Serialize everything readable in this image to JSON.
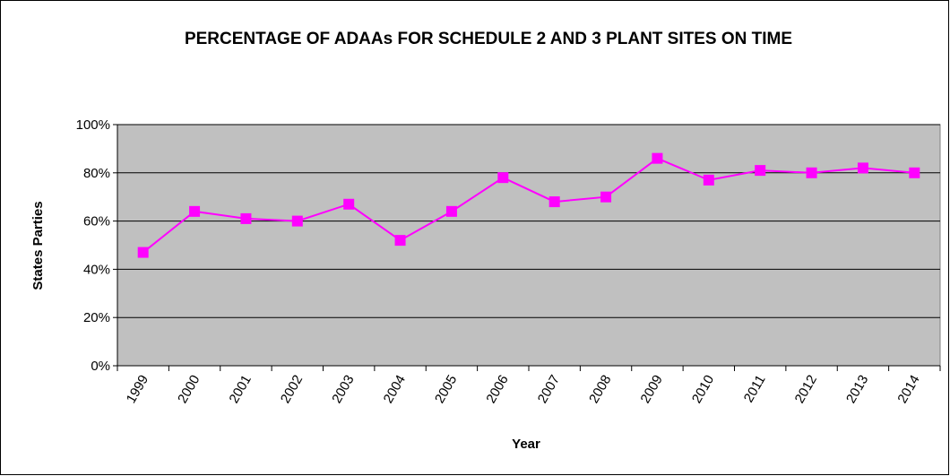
{
  "chart_data": {
    "type": "line",
    "title": "PERCENTAGE OF ADAAs FOR SCHEDULE 2 AND 3 PLANT SITES ON TIME",
    "x_label": "Year",
    "y_label": "States Parties",
    "categories": [
      "1999",
      "2000",
      "2001",
      "2002",
      "2003",
      "2004",
      "2005",
      "2006",
      "2007",
      "2008",
      "2009",
      "2010",
      "2011",
      "2012",
      "2013",
      "2014"
    ],
    "series": [
      {
        "name": "States Parties",
        "color": "#ff00ff",
        "values": [
          47,
          64,
          61,
          60,
          67,
          52,
          64,
          78,
          68,
          70,
          86,
          77,
          81,
          80,
          82,
          80
        ]
      }
    ],
    "ylim": [
      0,
      100
    ],
    "yticks": [
      {
        "value": 0,
        "label": "0%"
      },
      {
        "value": 20,
        "label": "20%"
      },
      {
        "value": 40,
        "label": "40%"
      },
      {
        "value": 60,
        "label": "60%"
      },
      {
        "value": 80,
        "label": "80%"
      },
      {
        "value": 100,
        "label": "100%"
      }
    ],
    "grid": true,
    "plot_background": "#c0c0c0"
  }
}
